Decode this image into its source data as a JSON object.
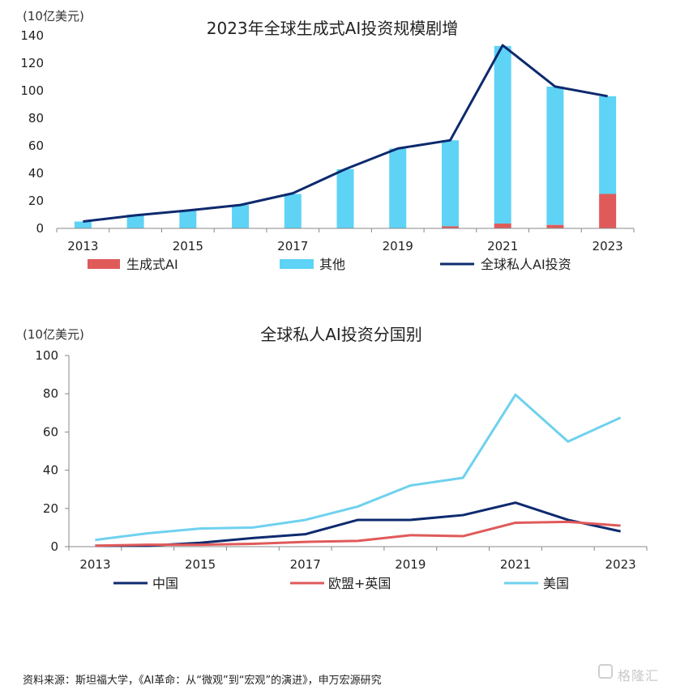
{
  "colors": {
    "generative": "#e05a5a",
    "other": "#5ed3f5",
    "total": "#0e2a6e",
    "china": "#0e2a6e",
    "eu_uk": "#e05a5a",
    "usa": "#6fd1ee",
    "axis": "#888888"
  },
  "chart_data": [
    {
      "type": "bar",
      "title": "2023年全球生成式AI投资规模剧增",
      "unit_label": "(10亿美元)",
      "categories": [
        "2013",
        "2014",
        "2015",
        "2016",
        "2017",
        "2018",
        "2019",
        "2020",
        "2021",
        "2022",
        "2023"
      ],
      "tick_labels": [
        "2013",
        "2015",
        "2017",
        "2019",
        "2021",
        "2023"
      ],
      "ylim": [
        0,
        140
      ],
      "yticks": [
        0,
        20,
        40,
        60,
        80,
        100,
        120,
        140
      ],
      "series": [
        {
          "name": "生成式AI",
          "kind": "bar",
          "values": [
            0,
            0,
            0,
            0,
            0,
            0,
            0,
            1.5,
            3.5,
            2.5,
            25
          ]
        },
        {
          "name": "其他",
          "kind": "bar",
          "values": [
            5,
            10,
            13,
            17,
            25,
            43,
            58,
            62.5,
            129,
            100.5,
            71
          ]
        },
        {
          "name": "全球私人AI投资",
          "kind": "line",
          "values": [
            5,
            9.5,
            13,
            17,
            25.5,
            43,
            58,
            64,
            133,
            103,
            96
          ]
        }
      ]
    },
    {
      "type": "line",
      "title": "全球私人AI投资分国别",
      "unit_label": "(10亿美元)",
      "categories": [
        "2013",
        "2014",
        "2015",
        "2016",
        "2017",
        "2018",
        "2019",
        "2020",
        "2021",
        "2022",
        "2023"
      ],
      "tick_labels": [
        "2013",
        "2015",
        "2017",
        "2019",
        "2021",
        "2023"
      ],
      "ylim": [
        0,
        100
      ],
      "yticks": [
        0,
        20,
        40,
        60,
        80,
        100
      ],
      "series": [
        {
          "name": "中国",
          "values": [
            0.5,
            0.5,
            2,
            4.5,
            6.5,
            14,
            14,
            16.5,
            23,
            14,
            8
          ]
        },
        {
          "name": "欧盟+英国",
          "values": [
            0.5,
            1,
            1,
            1.5,
            2.5,
            3,
            6,
            5.5,
            12.5,
            13,
            11
          ]
        },
        {
          "name": "美国",
          "values": [
            3.5,
            7,
            9.5,
            10,
            14,
            21,
            32,
            36,
            79.5,
            55,
            67.5
          ]
        }
      ]
    }
  ],
  "source": "资料来源：斯坦福大学，《AI革命：从“微观”到“宏观”的演进》，申万宏源研究",
  "watermark": "格隆汇"
}
